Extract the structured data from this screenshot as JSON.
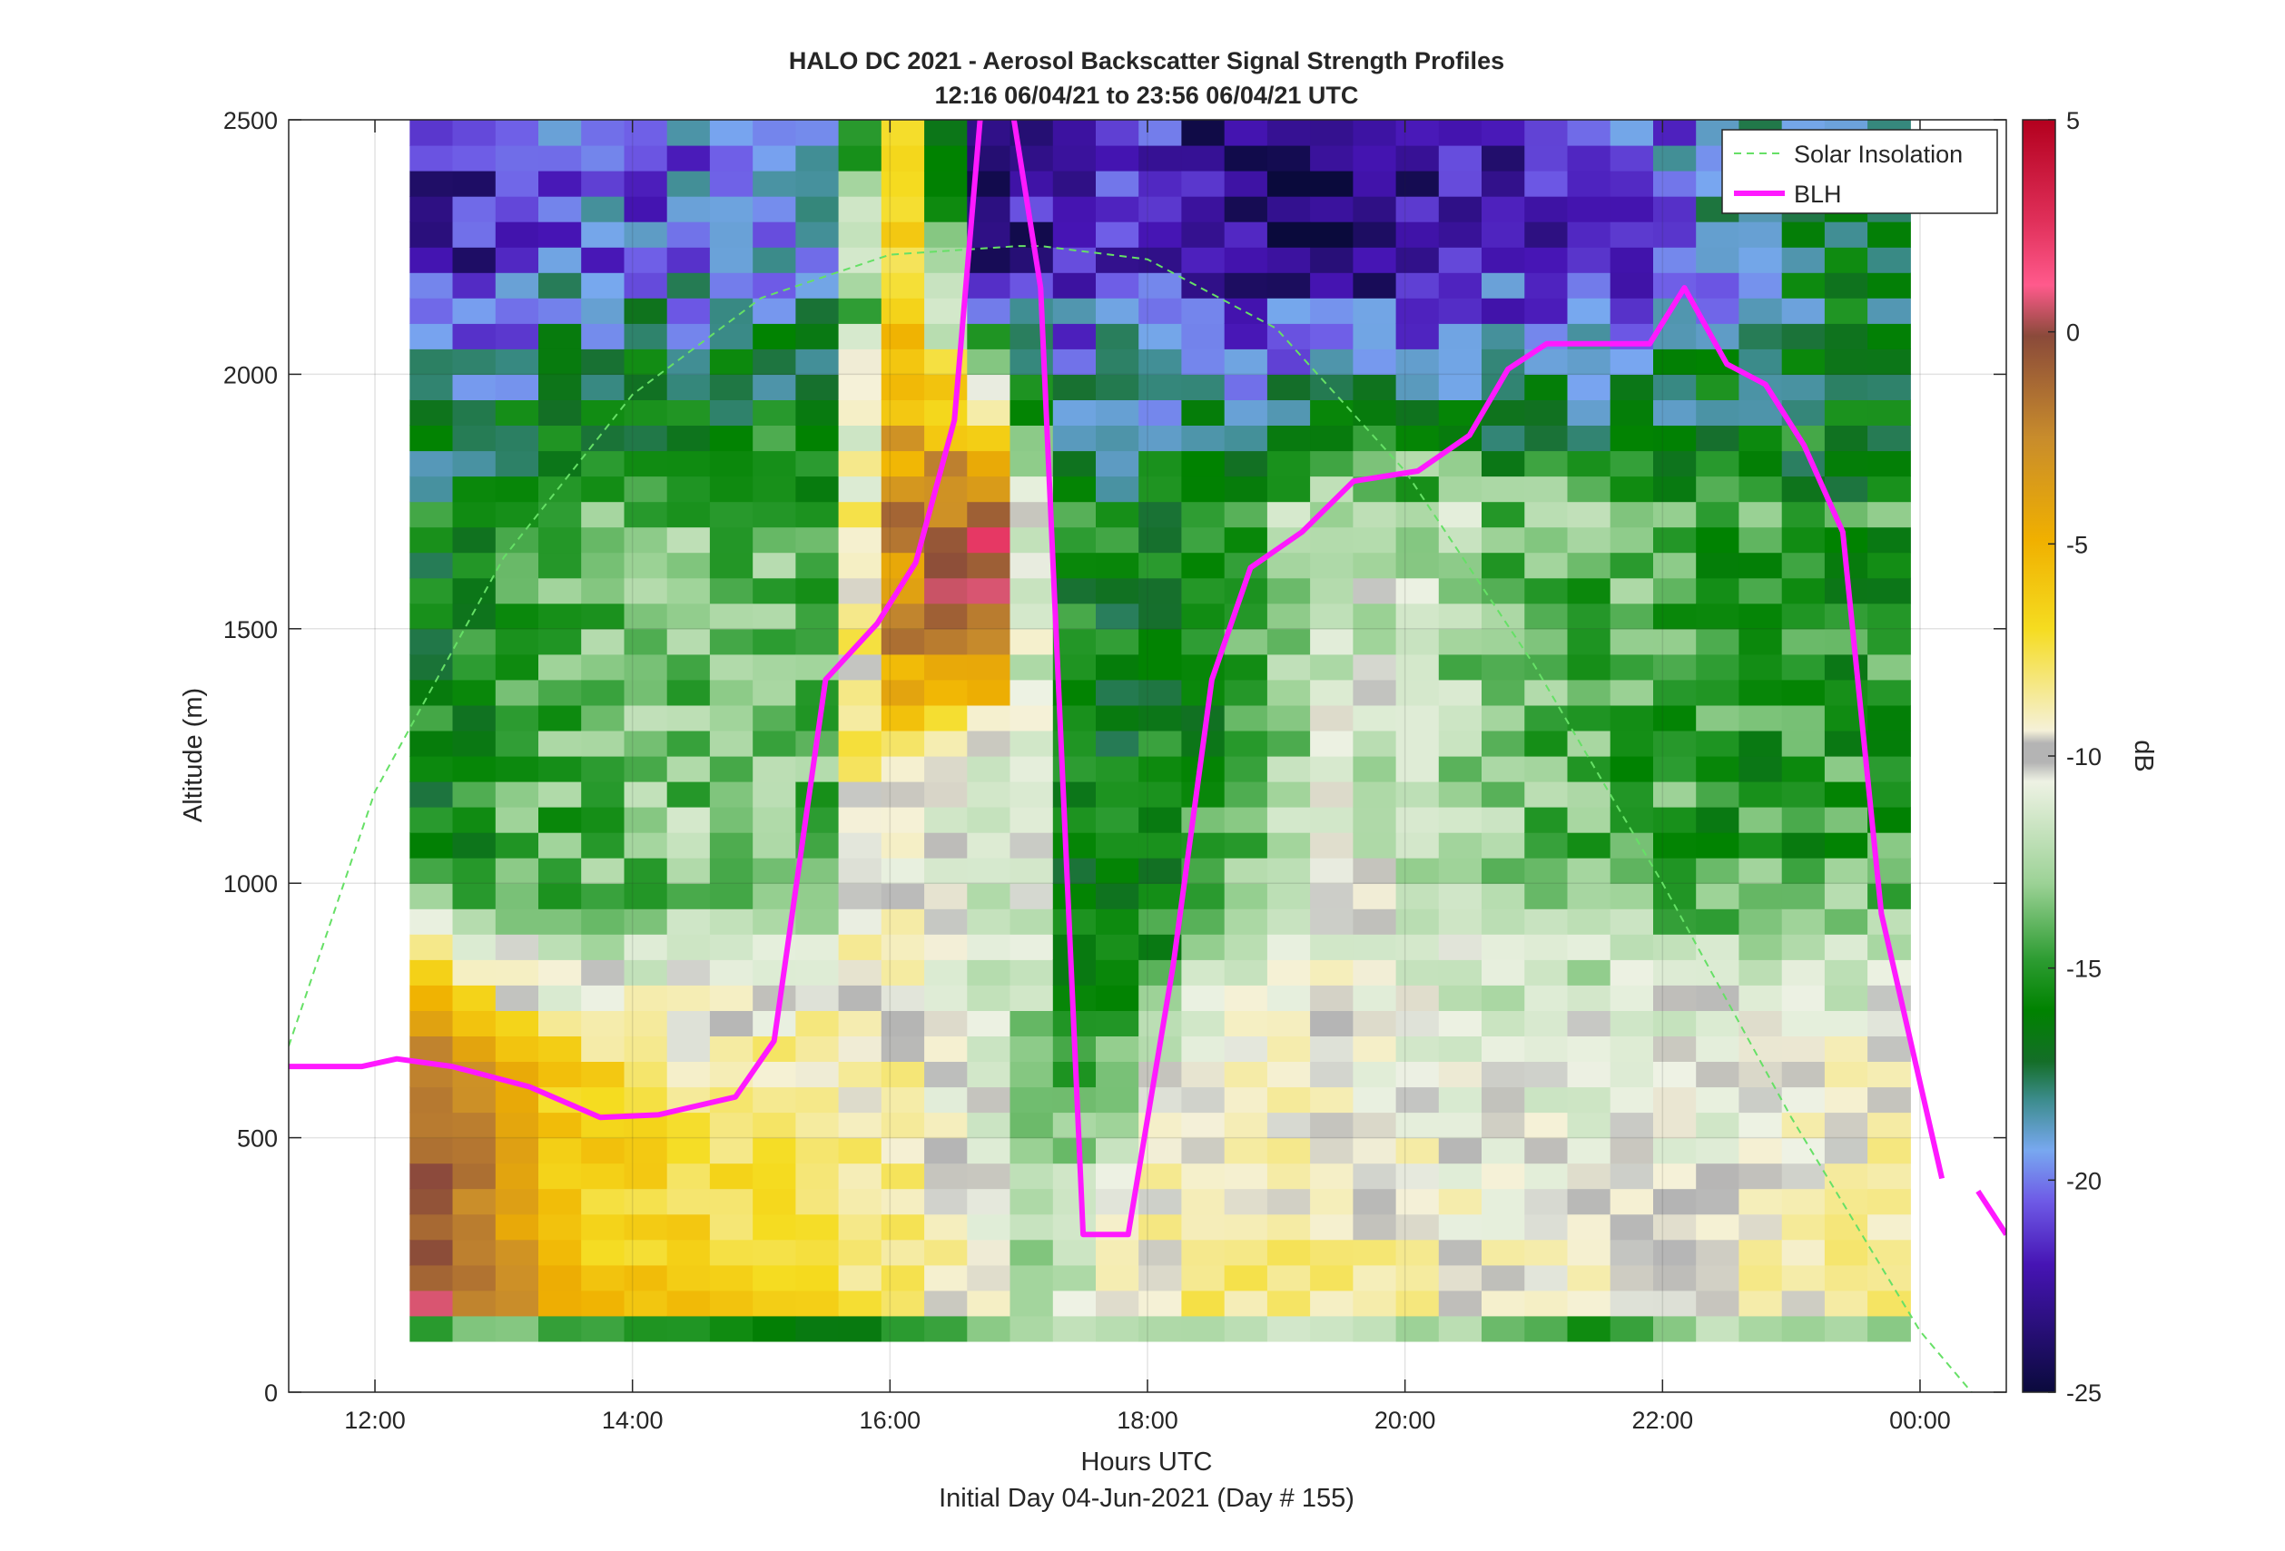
{
  "chart_data": {
    "type": "heatmap",
    "title": "HALO DC 2021 - Aerosol Backscatter Signal Strength Profiles",
    "subtitle": "12:16 06/04/21 to 23:56 06/04/21  UTC",
    "xlabel": "Hours UTC",
    "xlabel2": "Initial Day 04-Jun-2021 (Day # 155)",
    "ylabel": "Altitude (m)",
    "xlim": [
      11.33,
      24.67
    ],
    "ylim": [
      0,
      2500
    ],
    "x_ticks": [
      12,
      14,
      16,
      18,
      20,
      22,
      24
    ],
    "x_tick_labels": [
      "12:00",
      "14:00",
      "16:00",
      "18:00",
      "20:00",
      "22:00",
      "00:00"
    ],
    "y_ticks": [
      0,
      500,
      1000,
      1500,
      2000,
      2500
    ],
    "y_tick_labels": [
      "0",
      "500",
      "1000",
      "1500",
      "2000",
      "2500"
    ],
    "grid": true,
    "colorbar": {
      "label": "dB",
      "range": [
        -25,
        5
      ],
      "ticks": [
        5,
        0,
        -5,
        -10,
        -15,
        -20,
        -25
      ],
      "tick_labels": [
        "5",
        "0",
        "-5",
        "-10",
        "-15",
        "-20",
        "-25"
      ]
    },
    "heatmap": {
      "x_start": 12.27,
      "x_step": 0.333,
      "columns": 35,
      "altitude_start": 100,
      "altitude_step": 50,
      "rows": 48,
      "profiles": [
        {
          "x": 12.3,
          "surface": -14,
          "mixed_top": 680,
          "mixed_db": 1,
          "aloft_db": -16,
          "upper_db": -22
        },
        {
          "x": 12.8,
          "surface": -13,
          "mixed_top": 620,
          "mixed_db": -1,
          "aloft_db": -15,
          "upper_db": -22
        },
        {
          "x": 13.5,
          "surface": -15,
          "mixed_top": 600,
          "mixed_db": -5,
          "aloft_db": -14,
          "upper_db": -20
        },
        {
          "x": 14.5,
          "surface": -15,
          "mixed_top": 580,
          "mixed_db": -6,
          "aloft_db": -13,
          "upper_db": -20
        },
        {
          "x": 15.5,
          "surface": -16,
          "mixed_top": 700,
          "mixed_db": -7,
          "aloft_db": -14,
          "upper_db": -19
        },
        {
          "x": 16.1,
          "surface": -15,
          "mixed_top": 1100,
          "mixed_db": -8,
          "aloft_db": -3,
          "upper_db": -6
        },
        {
          "x": 16.8,
          "surface": -13,
          "mixed_top": 1200,
          "mixed_db": -10,
          "aloft_db": 1,
          "upper_db": -24
        },
        {
          "x": 17.2,
          "surface": -13,
          "mixed_top": 400,
          "mixed_db": -12,
          "aloft_db": -15,
          "upper_db": -22
        },
        {
          "x": 17.8,
          "surface": -12,
          "mixed_top": 400,
          "mixed_db": -8,
          "aloft_db": -16,
          "upper_db": -21
        },
        {
          "x": 18.5,
          "surface": -13,
          "mixed_top": 700,
          "mixed_db": -8,
          "aloft_db": -15,
          "upper_db": -23
        },
        {
          "x": 19.5,
          "surface": -11,
          "mixed_top": 760,
          "mixed_db": -8,
          "aloft_db": -11,
          "upper_db": -24
        },
        {
          "x": 20.5,
          "surface": -13,
          "mixed_top": 720,
          "mixed_db": -9,
          "aloft_db": -13,
          "upper_db": -22
        },
        {
          "x": 21.5,
          "surface": -15,
          "mixed_top": 700,
          "mixed_db": -9,
          "aloft_db": -14,
          "upper_db": -22
        },
        {
          "x": 22.5,
          "surface": -12,
          "mixed_top": 720,
          "mixed_db": -9,
          "aloft_db": -15,
          "upper_db": -19
        },
        {
          "x": 23.5,
          "surface": -13,
          "mixed_top": 700,
          "mixed_db": -8,
          "aloft_db": -15,
          "upper_db": -17
        }
      ]
    },
    "series": [
      {
        "name": "Solar Insolation",
        "style": "dashed",
        "color": "#66e066",
        "x": [
          11.33,
          12.0,
          13.0,
          14.0,
          15.0,
          16.0,
          17.0,
          17.17,
          18.0,
          19.0,
          20.0,
          21.0,
          22.0,
          23.0,
          24.0,
          24.4
        ],
        "y": [
          680,
          1180,
          1640,
          1960,
          2150,
          2235,
          2252,
          2252,
          2226,
          2090,
          1810,
          1430,
          1000,
          540,
          120,
          0
        ]
      },
      {
        "name": "BLH",
        "style": "solid",
        "color": "#ff19ff",
        "x": [
          11.33,
          11.9,
          12.17,
          12.6,
          13.2,
          13.75,
          14.2,
          14.8,
          15.1,
          15.5,
          15.9,
          16.2,
          16.5,
          16.7,
          16.9,
          17.17,
          17.5,
          17.85,
          18.2,
          18.5,
          18.8,
          19.2,
          19.6,
          20.1,
          20.5,
          20.8,
          21.1,
          21.5,
          21.9,
          22.17,
          22.5,
          22.8,
          23.1,
          23.4,
          23.7,
          24.17
        ],
        "y": [
          640,
          640,
          655,
          640,
          600,
          540,
          545,
          580,
          690,
          1400,
          1510,
          1630,
          1910,
          2500,
          2600,
          2170,
          310,
          310,
          840,
          1400,
          1620,
          1690,
          1790,
          1810,
          1880,
          2010,
          2060,
          2060,
          2060,
          2170,
          2020,
          1980,
          1860,
          1690,
          940,
          420
        ],
        "x_break": [
          24.67
        ],
        "x_tail": [
          24.45,
          24.67
        ],
        "y_tail": [
          395,
          310
        ]
      }
    ],
    "legend": {
      "position": "top-right",
      "entries": [
        "Solar Insolation",
        "BLH"
      ]
    }
  }
}
